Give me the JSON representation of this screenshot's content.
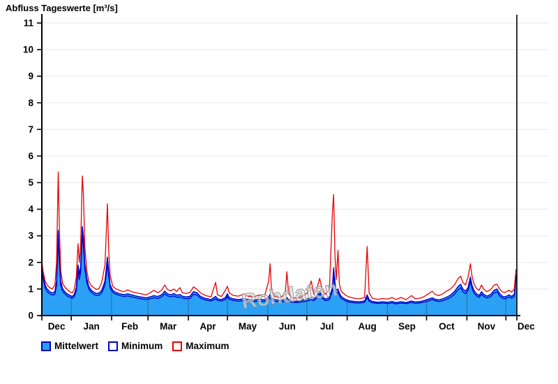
{
  "chart_data": {
    "type": "area",
    "title": "Abfluss Tageswerte [m³/s]",
    "watermark": "Rohdaten",
    "ylim": [
      0,
      11
    ],
    "ytick_step": 1,
    "grid": {
      "horizontal": true,
      "vertical_month_lines_inside_fill": true
    },
    "total_days": 365,
    "months": [
      "Dec",
      "Jan",
      "Feb",
      "Mar",
      "Apr",
      "May",
      "Jun",
      "Jul",
      "Aug",
      "Sep",
      "Oct",
      "Nov",
      "Dec"
    ],
    "month_boundaries_days": [
      0,
      22.6,
      53.6,
      81.6,
      112.6,
      142.6,
      173.6,
      203.6,
      234.6,
      265.6,
      295.6,
      326.6,
      356.6
    ],
    "month_label_centers_days": [
      11.3,
      38.1,
      67.6,
      97.1,
      127.6,
      158.1,
      188.6,
      219.1,
      250.1,
      280.6,
      311.1,
      341.6,
      372.1
    ],
    "series": [
      {
        "name": "Mittelwert",
        "type": "area",
        "fill": "#2AA1F5",
        "stroke": "#0000CC"
      },
      {
        "name": "Minimum",
        "type": "line",
        "stroke": "#0000CC"
      },
      {
        "name": "Maximum",
        "type": "line",
        "stroke": "#E60000"
      }
    ],
    "colors": {
      "h_gridline": "#EBEBEB",
      "axis": "#000000",
      "month_line_over_fill": "rgba(45,45,45,0.38)",
      "watermark_fill": "rgba(228,228,228,0.62)",
      "watermark_stroke": "#8F8F8F"
    },
    "points_format": [
      "day",
      "mittelwert",
      "minimum",
      "maximum"
    ],
    "points": [
      [
        0,
        1.9,
        1.75,
        2.0
      ],
      [
        1,
        1.5,
        1.38,
        1.65
      ],
      [
        2.5,
        1.15,
        1.05,
        1.3
      ],
      [
        4,
        1.0,
        0.9,
        1.15
      ],
      [
        6,
        0.9,
        0.82,
        1.05
      ],
      [
        8,
        0.85,
        0.77,
        1.0
      ],
      [
        10,
        0.9,
        0.8,
        1.15
      ],
      [
        11.3,
        1.3,
        1.15,
        2.0
      ],
      [
        12.6,
        3.2,
        2.85,
        5.4
      ],
      [
        13.5,
        2.2,
        1.95,
        3.2
      ],
      [
        14.5,
        1.3,
        1.15,
        1.7
      ],
      [
        16,
        1.0,
        0.9,
        1.2
      ],
      [
        18,
        0.88,
        0.8,
        1.05
      ],
      [
        20,
        0.8,
        0.72,
        0.95
      ],
      [
        22,
        0.75,
        0.68,
        0.88
      ],
      [
        23.5,
        0.72,
        0.65,
        0.85
      ],
      [
        25,
        0.8,
        0.72,
        1.0
      ],
      [
        26.5,
        1.05,
        0.93,
        1.45
      ],
      [
        27.8,
        1.9,
        1.65,
        2.7
      ],
      [
        28.8,
        1.55,
        1.35,
        2.0
      ],
      [
        29.8,
        1.85,
        1.62,
        2.6
      ],
      [
        31.1,
        3.35,
        3.0,
        5.25
      ],
      [
        32,
        2.9,
        2.6,
        4.5
      ],
      [
        33,
        1.95,
        1.75,
        2.6
      ],
      [
        34.5,
        1.4,
        1.25,
        1.7
      ],
      [
        36,
        1.1,
        1.0,
        1.3
      ],
      [
        38,
        0.95,
        0.87,
        1.12
      ],
      [
        40,
        0.88,
        0.8,
        1.05
      ],
      [
        42,
        0.83,
        0.75,
        0.98
      ],
      [
        44,
        0.85,
        0.77,
        1.02
      ],
      [
        46,
        0.95,
        0.85,
        1.25
      ],
      [
        48.5,
        1.3,
        1.15,
        1.9
      ],
      [
        50.4,
        2.2,
        1.95,
        4.2
      ],
      [
        51.4,
        1.65,
        1.47,
        2.4
      ],
      [
        52.5,
        1.15,
        1.03,
        1.5
      ],
      [
        54.5,
        0.95,
        0.87,
        1.1
      ],
      [
        57,
        0.87,
        0.8,
        1.0
      ],
      [
        60,
        0.82,
        0.75,
        0.94
      ],
      [
        63,
        0.79,
        0.72,
        0.9
      ],
      [
        66,
        0.82,
        0.74,
        0.96
      ],
      [
        69,
        0.78,
        0.7,
        0.9
      ],
      [
        72,
        0.74,
        0.67,
        0.86
      ],
      [
        76,
        0.7,
        0.63,
        0.82
      ],
      [
        80,
        0.67,
        0.6,
        0.78
      ],
      [
        83,
        0.7,
        0.63,
        0.85
      ],
      [
        86,
        0.75,
        0.67,
        0.95
      ],
      [
        89,
        0.72,
        0.64,
        0.86
      ],
      [
        92,
        0.78,
        0.7,
        0.95
      ],
      [
        94.5,
        0.92,
        0.82,
        1.15
      ],
      [
        96.5,
        0.82,
        0.74,
        0.98
      ],
      [
        99,
        0.78,
        0.7,
        0.93
      ],
      [
        101.5,
        0.83,
        0.74,
        1.0
      ],
      [
        103.5,
        0.77,
        0.69,
        0.9
      ],
      [
        106,
        0.79,
        0.7,
        1.05
      ],
      [
        108,
        0.73,
        0.66,
        0.86
      ],
      [
        111,
        0.7,
        0.63,
        0.83
      ],
      [
        114,
        0.73,
        0.65,
        0.88
      ],
      [
        116.5,
        0.9,
        0.8,
        1.08
      ],
      [
        119,
        0.87,
        0.78,
        1.0
      ],
      [
        122,
        0.72,
        0.65,
        0.85
      ],
      [
        126,
        0.64,
        0.58,
        0.75
      ],
      [
        130,
        0.6,
        0.55,
        0.7
      ],
      [
        133.5,
        0.72,
        0.63,
        1.25
      ],
      [
        135,
        0.63,
        0.57,
        0.78
      ],
      [
        138,
        0.6,
        0.55,
        0.72
      ],
      [
        141,
        0.68,
        0.6,
        0.95
      ],
      [
        142.5,
        0.82,
        0.72,
        1.1
      ],
      [
        144,
        0.68,
        0.61,
        0.85
      ],
      [
        147,
        0.63,
        0.57,
        0.76
      ],
      [
        151,
        0.6,
        0.54,
        0.73
      ],
      [
        155,
        0.63,
        0.56,
        0.8
      ],
      [
        159,
        0.6,
        0.54,
        0.72
      ],
      [
        163,
        0.58,
        0.53,
        0.7
      ],
      [
        167,
        0.62,
        0.55,
        0.78
      ],
      [
        171,
        0.59,
        0.53,
        0.71
      ],
      [
        174.3,
        0.7,
        0.61,
        1.3
      ],
      [
        175.4,
        0.8,
        0.68,
        1.95
      ],
      [
        176.5,
        0.65,
        0.58,
        0.9
      ],
      [
        179,
        0.6,
        0.54,
        0.72
      ],
      [
        183,
        0.57,
        0.52,
        0.68
      ],
      [
        187,
        0.6,
        0.53,
        0.8
      ],
      [
        188.3,
        0.68,
        0.6,
        1.65
      ],
      [
        189.5,
        0.6,
        0.54,
        0.85
      ],
      [
        192,
        0.55,
        0.5,
        0.67
      ],
      [
        196,
        0.54,
        0.49,
        0.65
      ],
      [
        200,
        0.58,
        0.52,
        0.72
      ],
      [
        204,
        0.62,
        0.55,
        0.85
      ],
      [
        207,
        0.68,
        0.6,
        1.3
      ],
      [
        209,
        0.62,
        0.56,
        0.8
      ],
      [
        211,
        0.72,
        0.64,
        0.95
      ],
      [
        213.5,
        0.92,
        0.82,
        1.4
      ],
      [
        215.5,
        0.72,
        0.64,
        0.95
      ],
      [
        218,
        0.62,
        0.56,
        0.8
      ],
      [
        221,
        0.68,
        0.6,
        1.0
      ],
      [
        223.3,
        1.05,
        0.92,
        3.9
      ],
      [
        224.2,
        1.8,
        1.58,
        4.55
      ],
      [
        225.2,
        1.25,
        1.1,
        2.3
      ],
      [
        226.2,
        0.95,
        0.85,
        1.35
      ],
      [
        227.6,
        1.0,
        0.88,
        2.45
      ],
      [
        228.6,
        0.85,
        0.76,
        1.2
      ],
      [
        230,
        0.72,
        0.64,
        0.92
      ],
      [
        233,
        0.62,
        0.56,
        0.78
      ],
      [
        236,
        0.56,
        0.51,
        0.7
      ],
      [
        240,
        0.53,
        0.48,
        0.65
      ],
      [
        244,
        0.52,
        0.47,
        0.63
      ],
      [
        248,
        0.55,
        0.5,
        0.68
      ],
      [
        250,
        0.78,
        0.68,
        2.6
      ],
      [
        251.5,
        0.6,
        0.54,
        0.85
      ],
      [
        254,
        0.53,
        0.48,
        0.65
      ],
      [
        258,
        0.5,
        0.46,
        0.61
      ],
      [
        262,
        0.52,
        0.47,
        0.64
      ],
      [
        266,
        0.5,
        0.45,
        0.62
      ],
      [
        269,
        0.53,
        0.48,
        0.68
      ],
      [
        272,
        0.49,
        0.44,
        0.6
      ],
      [
        276,
        0.52,
        0.47,
        0.68
      ],
      [
        280,
        0.49,
        0.45,
        0.6
      ],
      [
        284,
        0.55,
        0.49,
        0.75
      ],
      [
        287,
        0.51,
        0.46,
        0.63
      ],
      [
        291,
        0.53,
        0.48,
        0.66
      ],
      [
        294,
        0.57,
        0.51,
        0.72
      ],
      [
        297,
        0.62,
        0.55,
        0.82
      ],
      [
        300,
        0.67,
        0.6,
        0.92
      ],
      [
        302,
        0.62,
        0.56,
        0.8
      ],
      [
        305,
        0.59,
        0.53,
        0.75
      ],
      [
        308,
        0.63,
        0.56,
        0.82
      ],
      [
        311,
        0.69,
        0.61,
        0.92
      ],
      [
        314,
        0.77,
        0.68,
        1.0
      ],
      [
        317,
        0.9,
        0.8,
        1.15
      ],
      [
        320,
        1.1,
        0.98,
        1.4
      ],
      [
        321.8,
        1.18,
        1.05,
        1.48
      ],
      [
        323.5,
        1.0,
        0.9,
        1.25
      ],
      [
        325.5,
        0.92,
        0.82,
        1.15
      ],
      [
        327.5,
        1.05,
        0.94,
        1.45
      ],
      [
        329.3,
        1.45,
        1.3,
        1.95
      ],
      [
        330.5,
        1.15,
        1.03,
        1.5
      ],
      [
        332,
        0.95,
        0.85,
        1.2
      ],
      [
        334,
        0.82,
        0.74,
        1.02
      ],
      [
        336,
        0.76,
        0.68,
        0.95
      ],
      [
        337.9,
        0.9,
        0.8,
        1.15
      ],
      [
        339.5,
        0.8,
        0.72,
        1.0
      ],
      [
        342,
        0.73,
        0.66,
        0.9
      ],
      [
        345,
        0.8,
        0.72,
        0.98
      ],
      [
        347.5,
        0.95,
        0.85,
        1.15
      ],
      [
        349.7,
        1.0,
        0.9,
        1.18
      ],
      [
        351.5,
        0.85,
        0.76,
        1.02
      ],
      [
        353.5,
        0.74,
        0.66,
        0.9
      ],
      [
        355.5,
        0.7,
        0.63,
        0.86
      ],
      [
        357,
        0.73,
        0.65,
        0.9
      ],
      [
        359,
        0.78,
        0.7,
        0.95
      ],
      [
        361,
        0.72,
        0.65,
        0.88
      ],
      [
        363,
        0.8,
        0.72,
        1.0
      ],
      [
        364.3,
        1.5,
        1.38,
        1.72
      ],
      [
        365,
        1.55,
        1.42,
        1.75
      ]
    ]
  },
  "legend": {
    "items": [
      {
        "label": "Mittelwert",
        "swatch_fill": "#2AA1F5",
        "swatch_border": "#0000CC"
      },
      {
        "label": "Minimum",
        "swatch_fill": "#FFFFFF",
        "swatch_border": "#0000CC"
      },
      {
        "label": "Maximum",
        "swatch_fill": "#FFFFFF",
        "swatch_border": "#E60000"
      }
    ]
  }
}
